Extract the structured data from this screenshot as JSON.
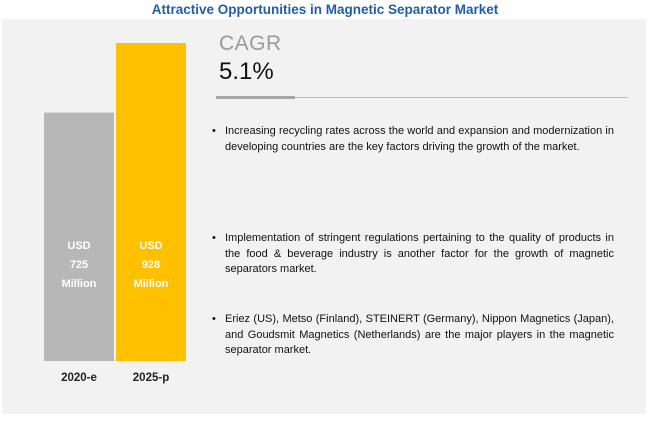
{
  "title": "Attractive Opportunities in Magnetic Separator Market",
  "cagr": {
    "label": "CAGR",
    "value": "5.1%"
  },
  "bullets": [
    "Increasing recycling rates across the world and expansion and modernization in developing countries are the key factors driving the growth of the market.",
    "Implementation of stringent regulations pertaining to the quality of products in the food & beverage industry is another factor for the growth of magnetic separators market.",
    "Eriez (US), Metso (Finland), STEINERT (Germany), Nippon Magnetics (Japan), and Goudsmit Magnetics (Netherlands) are the major players in the magnetic separator market."
  ],
  "chart_data": {
    "type": "bar",
    "categories": [
      "2020-e",
      "2025-p"
    ],
    "values": [
      725,
      928
    ],
    "bar_labels": [
      [
        "USD",
        "725",
        "Million"
      ],
      [
        "USD",
        "928",
        "Million"
      ]
    ],
    "colors": [
      "#b7b7b7",
      "#ffc000"
    ],
    "ylim": [
      0,
      928
    ],
    "grid": false,
    "title": "",
    "xlabel": "",
    "ylabel": ""
  }
}
